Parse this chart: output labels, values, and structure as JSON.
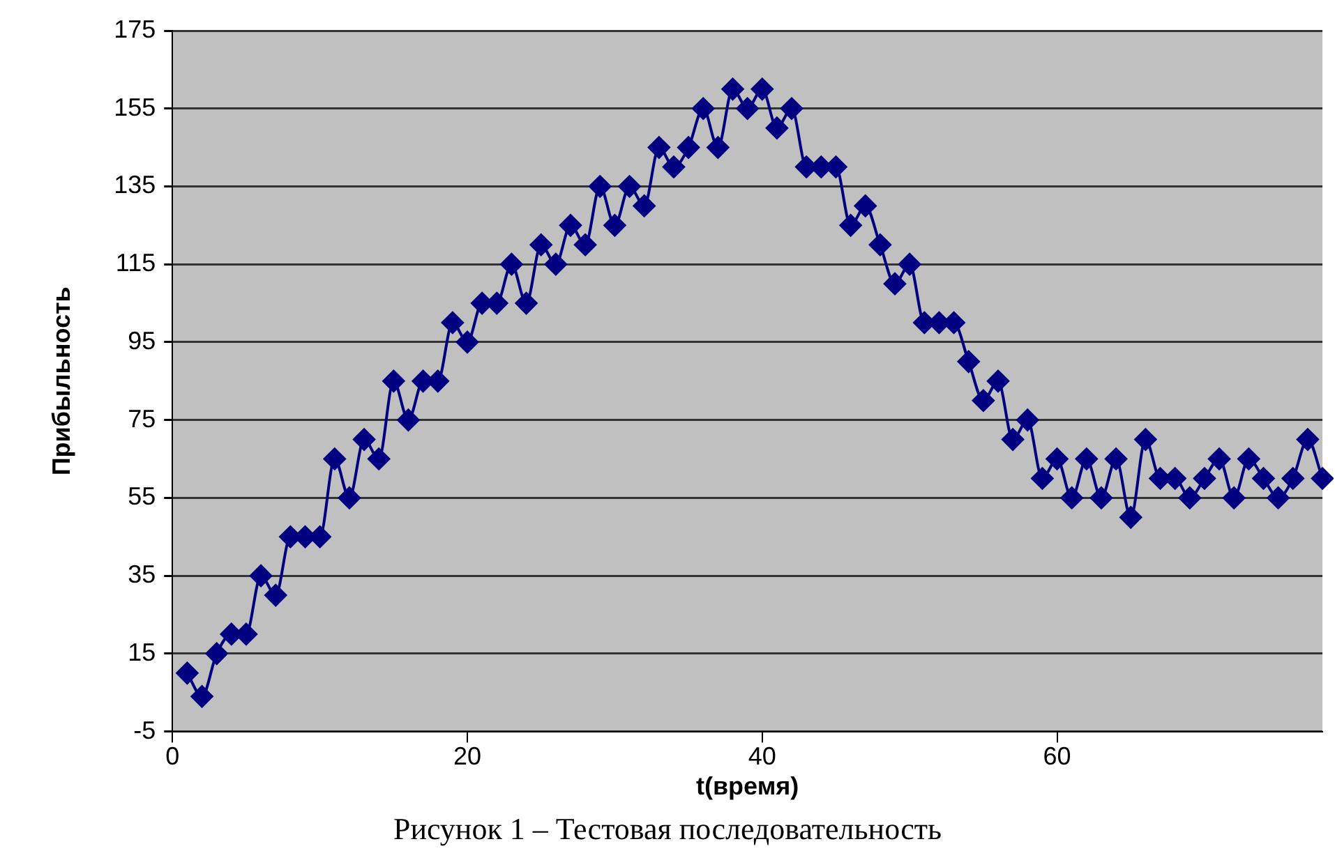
{
  "chart_data": {
    "type": "line",
    "xlabel": "t(время)",
    "ylabel": "Прибыльность",
    "annotations": [
      "Рисунок 1 – Тестовая последовательность"
    ],
    "x": [
      1,
      2,
      3,
      4,
      5,
      6,
      7,
      8,
      9,
      10,
      11,
      12,
      13,
      14,
      15,
      16,
      17,
      18,
      19,
      20,
      21,
      22,
      23,
      24,
      25,
      26,
      27,
      28,
      29,
      30,
      31,
      32,
      33,
      34,
      35,
      36,
      37,
      38,
      39,
      40,
      41,
      42,
      43,
      44,
      45,
      46,
      47,
      48,
      49,
      50,
      51,
      52,
      53,
      54,
      55,
      56,
      57,
      58,
      59,
      60,
      61,
      62,
      63,
      64,
      65,
      66,
      67,
      68,
      69,
      70,
      71,
      72,
      73,
      74,
      75,
      76,
      77,
      78
    ],
    "series": [
      {
        "color": "#000080",
        "values": [
          10,
          4,
          15,
          20,
          20,
          35,
          30,
          45,
          45,
          45,
          65,
          55,
          70,
          65,
          85,
          75,
          85,
          85,
          100,
          95,
          105,
          105,
          115,
          105,
          120,
          115,
          125,
          120,
          135,
          125,
          135,
          130,
          145,
          140,
          145,
          155,
          145,
          160,
          155,
          160,
          150,
          155,
          140,
          140,
          140,
          125,
          130,
          120,
          110,
          115,
          100,
          100,
          100,
          90,
          80,
          85,
          70,
          75,
          60,
          65,
          55,
          65,
          55,
          65,
          50,
          70,
          60,
          60,
          55,
          60,
          65,
          55,
          65,
          60,
          55,
          60,
          70,
          60
        ]
      }
    ],
    "xlim": [
      0,
      78
    ],
    "xticks": [
      0,
      20,
      40,
      60
    ],
    "ylim": [
      -5,
      175
    ],
    "yticks": [
      -5,
      15,
      35,
      55,
      75,
      95,
      115,
      135,
      155,
      175
    ],
    "grid": "y",
    "legend": false,
    "marker": "diamond",
    "line_style": "solid"
  }
}
